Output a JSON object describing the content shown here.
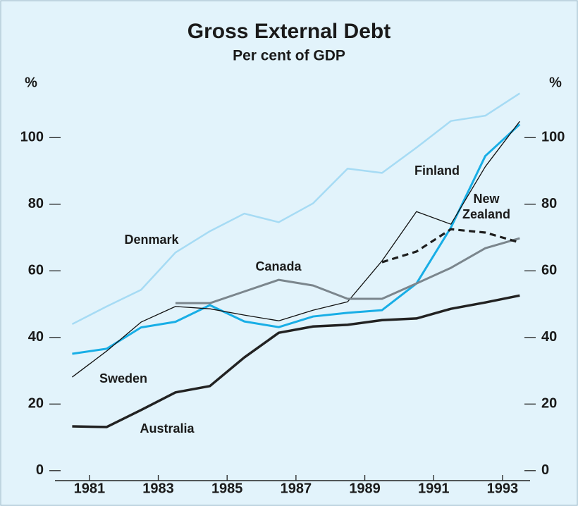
{
  "chart_data": {
    "type": "line",
    "title": "Gross External Debt",
    "subtitle": "Per cent of GDP",
    "ylabel": "%",
    "y2label": "%",
    "x": [
      1980.5,
      1981.5,
      1982.5,
      1983.5,
      1984.5,
      1985.5,
      1986.5,
      1987.5,
      1988.5,
      1989.5,
      1990.5,
      1991.5,
      1992.5,
      1993.5
    ],
    "xlim": [
      1980,
      1993.8
    ],
    "xticks": [
      1981,
      1983,
      1985,
      1987,
      1989,
      1991,
      1993
    ],
    "ylim": [
      -3,
      117
    ],
    "yticks": [
      0,
      20,
      40,
      60,
      80,
      100
    ],
    "y2lim": [
      -3,
      117
    ],
    "y2ticks": [
      0,
      20,
      40,
      60,
      80,
      100
    ],
    "series": [
      {
        "name": "Denmark",
        "color": "#a6dbf4",
        "values": [
          44,
          49.3,
          54.3,
          65.5,
          71.9,
          77.2,
          74.6,
          80.3,
          90.7,
          89.4,
          97,
          105,
          106.6,
          113.3
        ]
      },
      {
        "name": "Finland",
        "color": "#18aee6",
        "values": [
          35.1,
          36.6,
          43,
          44.7,
          49.7,
          44.8,
          43.1,
          46.3,
          47.4,
          48.2,
          56.2,
          73,
          94.5,
          104
        ]
      },
      {
        "name": "Sweden",
        "color": "#111111",
        "values": [
          28.1,
          35.9,
          44.6,
          49.3,
          48.6,
          46.7,
          45,
          48.2,
          50.7,
          63,
          77.8,
          74,
          91.3,
          104.9
        ]
      },
      {
        "name": "Canada",
        "color": "#7b868d",
        "values": [
          null,
          null,
          null,
          50.3,
          50.3,
          53.8,
          57.3,
          55.6,
          51.6,
          51.6,
          56.2,
          60.9,
          66.8,
          69.8
        ]
      },
      {
        "name": "New Zealand",
        "color": "#1e1e1e",
        "style": "dashed",
        "values": [
          null,
          null,
          null,
          null,
          null,
          null,
          null,
          null,
          null,
          62.6,
          65.8,
          72.5,
          71.5,
          68.5
        ]
      },
      {
        "name": "Australia",
        "color": "#222222",
        "values": [
          13.3,
          13.1,
          18.2,
          23.5,
          25.4,
          34,
          41.4,
          43.3,
          43.8,
          45.2,
          45.7,
          48.6,
          50.5,
          52.6
        ]
      }
    ]
  }
}
